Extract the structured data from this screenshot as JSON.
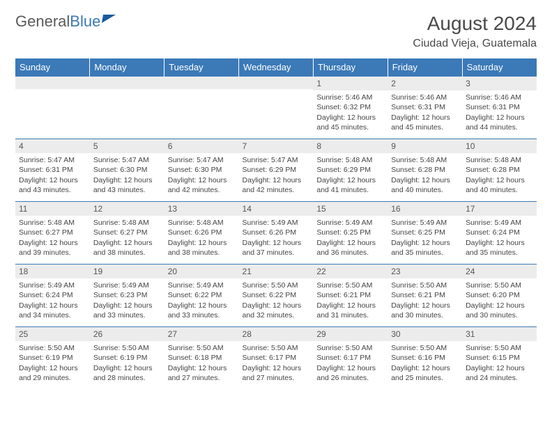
{
  "logo": {
    "part1": "General",
    "part2": "Blue"
  },
  "title": "August 2024",
  "location": "Ciudad Vieja, Guatemala",
  "dayHeaders": [
    "Sunday",
    "Monday",
    "Tuesday",
    "Wednesday",
    "Thursday",
    "Friday",
    "Saturday"
  ],
  "colors": {
    "header_bg": "#3b79b7",
    "header_text": "#ffffff",
    "row_divider": "#3b79b7",
    "daynum_bg": "#ececec",
    "text": "#444444"
  },
  "weeks": [
    [
      {
        "n": "",
        "sr": "",
        "ss": "",
        "dl": ""
      },
      {
        "n": "",
        "sr": "",
        "ss": "",
        "dl": ""
      },
      {
        "n": "",
        "sr": "",
        "ss": "",
        "dl": ""
      },
      {
        "n": "",
        "sr": "",
        "ss": "",
        "dl": ""
      },
      {
        "n": "1",
        "sr": "Sunrise: 5:46 AM",
        "ss": "Sunset: 6:32 PM",
        "dl": "Daylight: 12 hours and 45 minutes."
      },
      {
        "n": "2",
        "sr": "Sunrise: 5:46 AM",
        "ss": "Sunset: 6:31 PM",
        "dl": "Daylight: 12 hours and 45 minutes."
      },
      {
        "n": "3",
        "sr": "Sunrise: 5:46 AM",
        "ss": "Sunset: 6:31 PM",
        "dl": "Daylight: 12 hours and 44 minutes."
      }
    ],
    [
      {
        "n": "4",
        "sr": "Sunrise: 5:47 AM",
        "ss": "Sunset: 6:31 PM",
        "dl": "Daylight: 12 hours and 43 minutes."
      },
      {
        "n": "5",
        "sr": "Sunrise: 5:47 AM",
        "ss": "Sunset: 6:30 PM",
        "dl": "Daylight: 12 hours and 43 minutes."
      },
      {
        "n": "6",
        "sr": "Sunrise: 5:47 AM",
        "ss": "Sunset: 6:30 PM",
        "dl": "Daylight: 12 hours and 42 minutes."
      },
      {
        "n": "7",
        "sr": "Sunrise: 5:47 AM",
        "ss": "Sunset: 6:29 PM",
        "dl": "Daylight: 12 hours and 42 minutes."
      },
      {
        "n": "8",
        "sr": "Sunrise: 5:48 AM",
        "ss": "Sunset: 6:29 PM",
        "dl": "Daylight: 12 hours and 41 minutes."
      },
      {
        "n": "9",
        "sr": "Sunrise: 5:48 AM",
        "ss": "Sunset: 6:28 PM",
        "dl": "Daylight: 12 hours and 40 minutes."
      },
      {
        "n": "10",
        "sr": "Sunrise: 5:48 AM",
        "ss": "Sunset: 6:28 PM",
        "dl": "Daylight: 12 hours and 40 minutes."
      }
    ],
    [
      {
        "n": "11",
        "sr": "Sunrise: 5:48 AM",
        "ss": "Sunset: 6:27 PM",
        "dl": "Daylight: 12 hours and 39 minutes."
      },
      {
        "n": "12",
        "sr": "Sunrise: 5:48 AM",
        "ss": "Sunset: 6:27 PM",
        "dl": "Daylight: 12 hours and 38 minutes."
      },
      {
        "n": "13",
        "sr": "Sunrise: 5:48 AM",
        "ss": "Sunset: 6:26 PM",
        "dl": "Daylight: 12 hours and 38 minutes."
      },
      {
        "n": "14",
        "sr": "Sunrise: 5:49 AM",
        "ss": "Sunset: 6:26 PM",
        "dl": "Daylight: 12 hours and 37 minutes."
      },
      {
        "n": "15",
        "sr": "Sunrise: 5:49 AM",
        "ss": "Sunset: 6:25 PM",
        "dl": "Daylight: 12 hours and 36 minutes."
      },
      {
        "n": "16",
        "sr": "Sunrise: 5:49 AM",
        "ss": "Sunset: 6:25 PM",
        "dl": "Daylight: 12 hours and 35 minutes."
      },
      {
        "n": "17",
        "sr": "Sunrise: 5:49 AM",
        "ss": "Sunset: 6:24 PM",
        "dl": "Daylight: 12 hours and 35 minutes."
      }
    ],
    [
      {
        "n": "18",
        "sr": "Sunrise: 5:49 AM",
        "ss": "Sunset: 6:24 PM",
        "dl": "Daylight: 12 hours and 34 minutes."
      },
      {
        "n": "19",
        "sr": "Sunrise: 5:49 AM",
        "ss": "Sunset: 6:23 PM",
        "dl": "Daylight: 12 hours and 33 minutes."
      },
      {
        "n": "20",
        "sr": "Sunrise: 5:49 AM",
        "ss": "Sunset: 6:22 PM",
        "dl": "Daylight: 12 hours and 33 minutes."
      },
      {
        "n": "21",
        "sr": "Sunrise: 5:50 AM",
        "ss": "Sunset: 6:22 PM",
        "dl": "Daylight: 12 hours and 32 minutes."
      },
      {
        "n": "22",
        "sr": "Sunrise: 5:50 AM",
        "ss": "Sunset: 6:21 PM",
        "dl": "Daylight: 12 hours and 31 minutes."
      },
      {
        "n": "23",
        "sr": "Sunrise: 5:50 AM",
        "ss": "Sunset: 6:21 PM",
        "dl": "Daylight: 12 hours and 30 minutes."
      },
      {
        "n": "24",
        "sr": "Sunrise: 5:50 AM",
        "ss": "Sunset: 6:20 PM",
        "dl": "Daylight: 12 hours and 30 minutes."
      }
    ],
    [
      {
        "n": "25",
        "sr": "Sunrise: 5:50 AM",
        "ss": "Sunset: 6:19 PM",
        "dl": "Daylight: 12 hours and 29 minutes."
      },
      {
        "n": "26",
        "sr": "Sunrise: 5:50 AM",
        "ss": "Sunset: 6:19 PM",
        "dl": "Daylight: 12 hours and 28 minutes."
      },
      {
        "n": "27",
        "sr": "Sunrise: 5:50 AM",
        "ss": "Sunset: 6:18 PM",
        "dl": "Daylight: 12 hours and 27 minutes."
      },
      {
        "n": "28",
        "sr": "Sunrise: 5:50 AM",
        "ss": "Sunset: 6:17 PM",
        "dl": "Daylight: 12 hours and 27 minutes."
      },
      {
        "n": "29",
        "sr": "Sunrise: 5:50 AM",
        "ss": "Sunset: 6:17 PM",
        "dl": "Daylight: 12 hours and 26 minutes."
      },
      {
        "n": "30",
        "sr": "Sunrise: 5:50 AM",
        "ss": "Sunset: 6:16 PM",
        "dl": "Daylight: 12 hours and 25 minutes."
      },
      {
        "n": "31",
        "sr": "Sunrise: 5:50 AM",
        "ss": "Sunset: 6:15 PM",
        "dl": "Daylight: 12 hours and 24 minutes."
      }
    ]
  ]
}
